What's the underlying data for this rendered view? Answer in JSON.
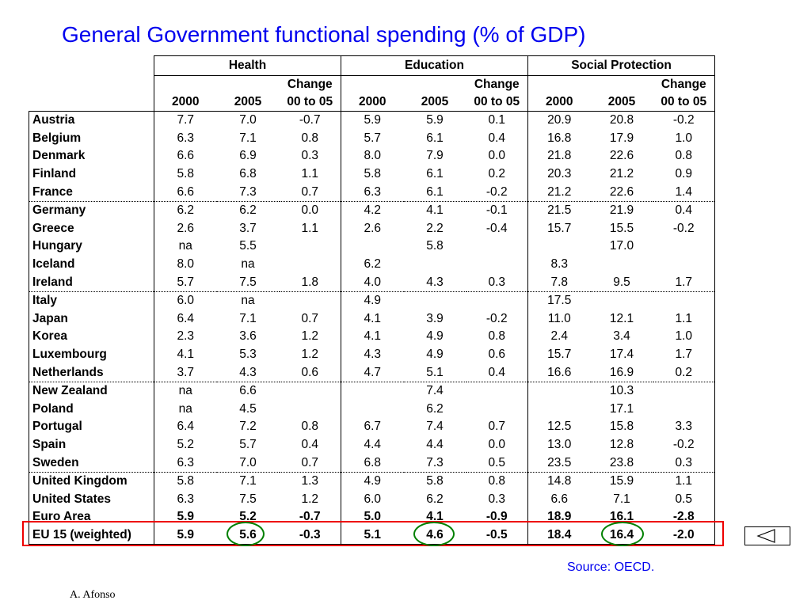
{
  "title": "General Government functional spending (% of GDP)",
  "groups": [
    "Health",
    "Education",
    "Social Protection"
  ],
  "sub_header_top": [
    "",
    "",
    "Change",
    "",
    "",
    "Change",
    "",
    "",
    "Change"
  ],
  "sub_header": [
    "2000",
    "2005",
    "00 to 05",
    "2000",
    "2005",
    "00 to 05",
    "2000",
    "2005",
    "00 to 05"
  ],
  "rows": [
    {
      "name": "Austria",
      "values": [
        "7.7",
        "7.0",
        "-0.7",
        "5.9",
        "5.9",
        "0.1",
        "20.9",
        "20.8",
        "-0.2"
      ]
    },
    {
      "name": "Belgium",
      "values": [
        "6.3",
        "7.1",
        "0.8",
        "5.7",
        "6.1",
        "0.4",
        "16.8",
        "17.9",
        "1.0"
      ]
    },
    {
      "name": "Denmark",
      "values": [
        "6.6",
        "6.9",
        "0.3",
        "8.0",
        "7.9",
        "0.0",
        "21.8",
        "22.6",
        "0.8"
      ]
    },
    {
      "name": "Finland",
      "values": [
        "5.8",
        "6.8",
        "1.1",
        "5.8",
        "6.1",
        "0.2",
        "20.3",
        "21.2",
        "0.9"
      ]
    },
    {
      "name": "France",
      "values": [
        "6.6",
        "7.3",
        "0.7",
        "6.3",
        "6.1",
        "-0.2",
        "21.2",
        "22.6",
        "1.4"
      ]
    },
    {
      "name": "Germany",
      "values": [
        "6.2",
        "6.2",
        "0.0",
        "4.2",
        "4.1",
        "-0.1",
        "21.5",
        "21.9",
        "0.4"
      ]
    },
    {
      "name": "Greece",
      "values": [
        "2.6",
        "3.7",
        "1.1",
        "2.6",
        "2.2",
        "-0.4",
        "15.7",
        "15.5",
        "-0.2"
      ]
    },
    {
      "name": "Hungary",
      "values": [
        "na",
        "5.5",
        "",
        "",
        "5.8",
        "",
        "",
        "17.0",
        ""
      ]
    },
    {
      "name": "Iceland",
      "values": [
        "8.0",
        "na",
        "",
        "6.2",
        "",
        "",
        "8.3",
        "",
        ""
      ]
    },
    {
      "name": "Ireland",
      "values": [
        "5.7",
        "7.5",
        "1.8",
        "4.0",
        "4.3",
        "0.3",
        "7.8",
        "9.5",
        "1.7"
      ]
    },
    {
      "name": "Italy",
      "values": [
        "6.0",
        "na",
        "",
        "4.9",
        "",
        "",
        "17.5",
        "",
        ""
      ]
    },
    {
      "name": "Japan",
      "values": [
        "6.4",
        "7.1",
        "0.7",
        "4.1",
        "3.9",
        "-0.2",
        "11.0",
        "12.1",
        "1.1"
      ]
    },
    {
      "name": "Korea",
      "values": [
        "2.3",
        "3.6",
        "1.2",
        "4.1",
        "4.9",
        "0.8",
        "2.4",
        "3.4",
        "1.0"
      ]
    },
    {
      "name": "Luxembourg",
      "values": [
        "4.1",
        "5.3",
        "1.2",
        "4.3",
        "4.9",
        "0.6",
        "15.7",
        "17.4",
        "1.7"
      ]
    },
    {
      "name": "Netherlands",
      "values": [
        "3.7",
        "4.3",
        "0.6",
        "4.7",
        "5.1",
        "0.4",
        "16.6",
        "16.9",
        "0.2"
      ]
    },
    {
      "name": "New Zealand",
      "values": [
        "na",
        "6.6",
        "",
        "",
        "7.4",
        "",
        "",
        "10.3",
        ""
      ]
    },
    {
      "name": "Poland",
      "values": [
        "na",
        "4.5",
        "",
        "",
        "6.2",
        "",
        "",
        "17.1",
        ""
      ]
    },
    {
      "name": "Portugal",
      "values": [
        "6.4",
        "7.2",
        "0.8",
        "6.7",
        "7.4",
        "0.7",
        "12.5",
        "15.8",
        "3.3"
      ]
    },
    {
      "name": "Spain",
      "values": [
        "5.2",
        "5.7",
        "0.4",
        "4.4",
        "4.4",
        "0.0",
        "13.0",
        "12.8",
        "-0.2"
      ]
    },
    {
      "name": "Sweden",
      "values": [
        "6.3",
        "7.0",
        "0.7",
        "6.8",
        "7.3",
        "0.5",
        "23.5",
        "23.8",
        "0.3"
      ]
    },
    {
      "name": "United Kingdom",
      "values": [
        "5.8",
        "7.1",
        "1.3",
        "4.9",
        "5.8",
        "0.8",
        "14.8",
        "15.9",
        "1.1"
      ]
    },
    {
      "name": "United States",
      "values": [
        "6.3",
        "7.5",
        "1.2",
        "6.0",
        "6.2",
        "0.3",
        "6.6",
        "7.1",
        "0.5"
      ]
    },
    {
      "name": "Euro Area",
      "values": [
        "5.9",
        "5.2",
        "-0.7",
        "5.0",
        "4.1",
        "-0.9",
        "18.9",
        "16.1",
        "-2.8"
      ]
    },
    {
      "name": "EU 15 (weighted)",
      "values": [
        "5.9",
        "5.6",
        "-0.3",
        "5.1",
        "4.6",
        "-0.5",
        "18.4",
        "16.4",
        "-2.0"
      ]
    }
  ],
  "source": "Source: OECD.",
  "author": "A. Afonso",
  "colors": {
    "title": "#0000ee",
    "highlight": "#ee0000",
    "circle": "#008000",
    "source": "#0000ee"
  },
  "back_button_icon": "triangle-left-icon"
}
